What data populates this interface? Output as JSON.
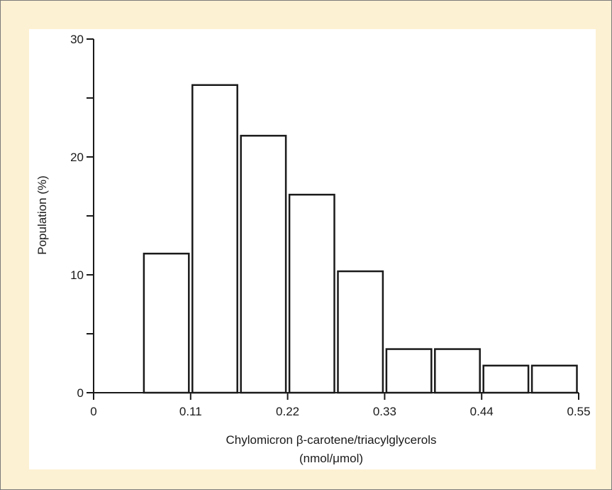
{
  "chart_data": {
    "type": "bar",
    "title": "",
    "xlabel_line1": "Chylomicron β-carotene/triacylglycerols",
    "xlabel_line2": "(nmol/μmol)",
    "ylabel": "Population (%)",
    "xlim": [
      0,
      0.55
    ],
    "ylim": [
      0,
      30
    ],
    "x_ticks": [
      "0",
      "0.11",
      "0.22",
      "0.33",
      "0.44",
      "0.55"
    ],
    "x_tick_values": [
      0,
      0.11,
      0.22,
      0.33,
      0.44,
      0.55
    ],
    "y_ticks": [
      "0",
      "10",
      "20",
      "30"
    ],
    "y_tick_values": [
      0,
      10,
      20,
      30
    ],
    "y_minor_tick_values": [
      5,
      15,
      25
    ],
    "bin_width": 0.055,
    "bins": [
      {
        "start": 0.055,
        "end": 0.11,
        "value": 11.8
      },
      {
        "start": 0.11,
        "end": 0.165,
        "value": 26.1
      },
      {
        "start": 0.165,
        "end": 0.22,
        "value": 21.8
      },
      {
        "start": 0.22,
        "end": 0.275,
        "value": 16.8
      },
      {
        "start": 0.275,
        "end": 0.33,
        "value": 10.3
      },
      {
        "start": 0.33,
        "end": 0.385,
        "value": 3.7
      },
      {
        "start": 0.385,
        "end": 0.44,
        "value": 3.7
      },
      {
        "start": 0.44,
        "end": 0.495,
        "value": 2.3
      },
      {
        "start": 0.495,
        "end": 0.55,
        "value": 2.3
      }
    ],
    "grid": false,
    "legend": "none"
  },
  "colors": {
    "panel_border": "#7a7a7a",
    "panel_background": "#fdf1d3",
    "plot_background": "#ffffff",
    "bar_fill": "#ffffff",
    "bar_stroke": "#1a1a1a",
    "axis": "#1a1a1a"
  }
}
